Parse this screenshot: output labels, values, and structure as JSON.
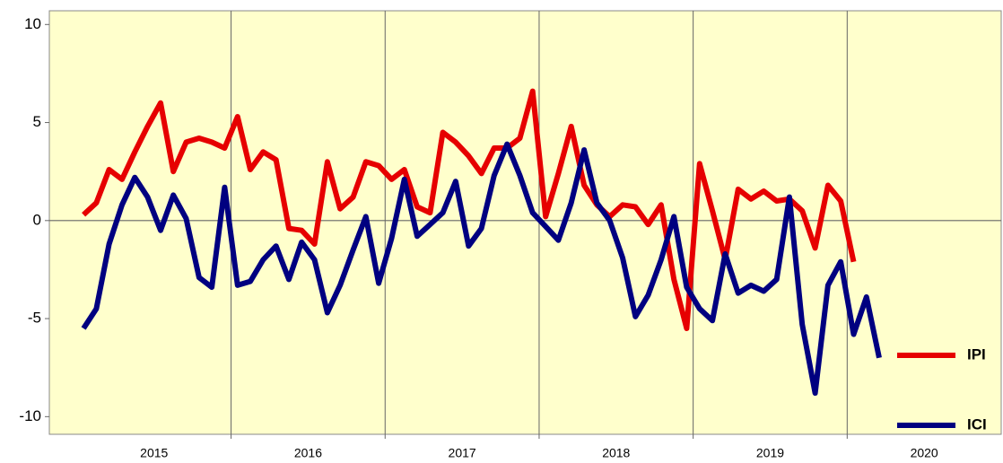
{
  "chart_data": {
    "type": "line",
    "x": [
      2015.042,
      2015.125,
      2015.208,
      2015.292,
      2015.375,
      2015.458,
      2015.542,
      2015.625,
      2015.708,
      2015.792,
      2015.875,
      2015.958,
      2016.042,
      2016.125,
      2016.208,
      2016.292,
      2016.375,
      2016.458,
      2016.542,
      2016.625,
      2016.708,
      2016.792,
      2016.875,
      2016.958,
      2017.042,
      2017.125,
      2017.208,
      2017.292,
      2017.375,
      2017.458,
      2017.542,
      2017.625,
      2017.708,
      2017.792,
      2017.875,
      2017.958,
      2018.042,
      2018.125,
      2018.208,
      2018.292,
      2018.375,
      2018.458,
      2018.542,
      2018.625,
      2018.708,
      2018.792,
      2018.875,
      2018.958,
      2019.042,
      2019.125,
      2019.208,
      2019.292,
      2019.375,
      2019.458,
      2019.542,
      2019.625,
      2019.708,
      2019.792,
      2019.875,
      2019.958,
      2020.042,
      2020.125,
      2020.208
    ],
    "series": [
      {
        "name": "IPI",
        "color": "#e60000",
        "values": [
          0.3,
          0.9,
          2.6,
          2.1,
          3.5,
          4.8,
          6.0,
          2.5,
          4.0,
          4.2,
          4.0,
          3.7,
          5.3,
          2.6,
          3.5,
          3.1,
          -0.4,
          -0.5,
          -1.2,
          3.0,
          0.6,
          1.2,
          3.0,
          2.8,
          2.1,
          2.6,
          0.7,
          0.4,
          4.5,
          4.0,
          3.3,
          2.4,
          3.7,
          3.7,
          4.2,
          6.6,
          0.2,
          2.4,
          4.8,
          1.8,
          0.8,
          0.2,
          0.8,
          0.7,
          -0.2,
          0.8,
          -3.0,
          -5.5,
          2.9,
          0.5,
          -2.0,
          1.6,
          1.1,
          1.5,
          1.0,
          1.1,
          0.5,
          -1.4,
          1.8,
          1.0,
          -2.1,
          null,
          null
        ]
      },
      {
        "name": "ICI",
        "color": "#000080",
        "values": [
          -5.5,
          -4.5,
          -1.2,
          0.8,
          2.2,
          1.2,
          -0.5,
          1.3,
          0.1,
          -2.9,
          -3.4,
          1.7,
          -3.3,
          -3.1,
          -2.0,
          -1.3,
          -3.0,
          -1.1,
          -2.0,
          -4.7,
          -3.3,
          -1.5,
          0.2,
          -3.2,
          -0.9,
          2.1,
          -0.8,
          -0.2,
          0.4,
          2.0,
          -1.3,
          -0.4,
          2.3,
          3.9,
          2.3,
          0.4,
          -0.3,
          -1.0,
          0.9,
          3.6,
          0.9,
          0.0,
          -1.9,
          -4.9,
          -3.8,
          -2.0,
          0.2,
          -3.4,
          -4.5,
          -5.1,
          -1.7,
          -3.7,
          -3.3,
          -3.6,
          -3.0,
          1.2,
          -5.3,
          -8.8,
          -3.3,
          -2.1,
          -5.8,
          -3.9,
          -7.0
        ]
      }
    ],
    "xlim": [
      2014.82,
      2021.0
    ],
    "xticks": [
      {
        "value": 2015.5,
        "label": "2015"
      },
      {
        "value": 2016.5,
        "label": "2016"
      },
      {
        "value": 2017.5,
        "label": "2017"
      },
      {
        "value": 2018.5,
        "label": "2018"
      },
      {
        "value": 2019.5,
        "label": "2019"
      },
      {
        "value": 2020.5,
        "label": "2020"
      }
    ],
    "xgrid": [
      2016,
      2017,
      2018,
      2019,
      2020
    ],
    "ylim": [
      -10.9,
      10.7
    ],
    "yticks": [
      -10,
      -5,
      0,
      5,
      10
    ],
    "zero_line": true,
    "legend": "bottom-right"
  }
}
